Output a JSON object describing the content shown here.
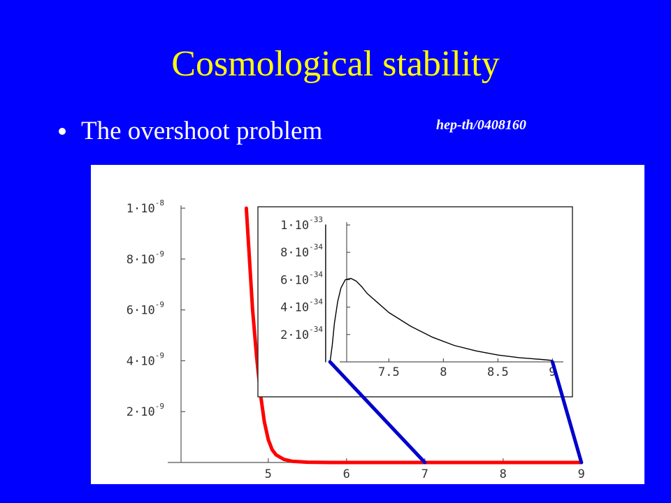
{
  "slide": {
    "title": "Cosmological stability",
    "bullet": "The overshoot problem",
    "reference": "hep-th/0408160"
  },
  "colors": {
    "background": "#0000ff",
    "title": "#ffff00",
    "main_curve": "#ff0000",
    "connector": "#0000cc"
  },
  "chart_data": [
    {
      "type": "line",
      "title": "",
      "xlabel": "",
      "ylabel": "",
      "xlim": [
        4.1,
        9.1
      ],
      "ylim": [
        0,
        1e-08
      ],
      "x_ticks": [
        5,
        6,
        7,
        8,
        9
      ],
      "x_tick_labels": [
        "5",
        "6",
        "7",
        "8",
        "9"
      ],
      "y_ticks": [
        2e-09,
        4e-09,
        6e-09,
        8e-09,
        1e-08
      ],
      "y_tick_labels": [
        {
          "base": "2·10",
          "exp": "-9"
        },
        {
          "base": "4·10",
          "exp": "-9"
        },
        {
          "base": "6·10",
          "exp": "-9"
        },
        {
          "base": "8·10",
          "exp": "-9"
        },
        {
          "base": "1·10",
          "exp": "-8"
        }
      ],
      "grid": false,
      "series": [
        {
          "color": "#ff0000",
          "x": [
            4.72,
            4.76,
            4.8,
            4.85,
            4.9,
            4.95,
            5.0,
            5.05,
            5.1,
            5.2,
            5.3,
            5.5,
            5.8,
            6.5,
            7.0,
            8.0,
            9.0
          ],
          "y": [
            1e-08,
            8e-09,
            6e-09,
            4.2e-09,
            2.7e-09,
            1.6e-09,
            9e-10,
            5e-10,
            3e-10,
            1.2e-10,
            5e-11,
            1e-11,
            0,
            0,
            0,
            0,
            0
          ]
        }
      ]
    },
    {
      "type": "line",
      "title": "",
      "xlabel": "",
      "ylabel": "",
      "xlim": [
        6.85,
        9.1
      ],
      "ylim": [
        0,
        1e-33
      ],
      "x_ticks": [
        7.5,
        8,
        8.5,
        9
      ],
      "x_tick_labels": [
        "7.5",
        "8",
        "8.5",
        "9"
      ],
      "y_ticks": [
        2e-34,
        4e-34,
        6e-34,
        8e-34,
        1e-33
      ],
      "y_tick_labels": [
        {
          "base": "2·10",
          "exp": "-34"
        },
        {
          "base": "4·10",
          "exp": "-34"
        },
        {
          "base": "6·10",
          "exp": "-34"
        },
        {
          "base": "8·10",
          "exp": "-34"
        },
        {
          "base": "1·10",
          "exp": "-33"
        }
      ],
      "grid": false,
      "series": [
        {
          "color": "#000000",
          "x": [
            6.96,
            6.98,
            7.0,
            7.03,
            7.06,
            7.1,
            7.15,
            7.2,
            7.25,
            7.3,
            7.4,
            7.5,
            7.7,
            7.9,
            8.1,
            8.3,
            8.5,
            8.7,
            8.9,
            9.0
          ],
          "y": [
            0,
            1.2e-34,
            2.8e-34,
            4.4e-34,
            5.4e-34,
            6e-34,
            6.1e-34,
            5.9e-34,
            5.5e-34,
            5e-34,
            4.3e-34,
            3.6e-34,
            2.6e-34,
            1.8e-34,
            1.2e-34,
            8e-35,
            5e-35,
            3e-35,
            1.8e-35,
            1e-35
          ]
        },
        {
          "color": "#000000",
          "x": [
            6.92,
            6.92
          ],
          "y": [
            0,
            1e-33
          ]
        }
      ]
    }
  ]
}
